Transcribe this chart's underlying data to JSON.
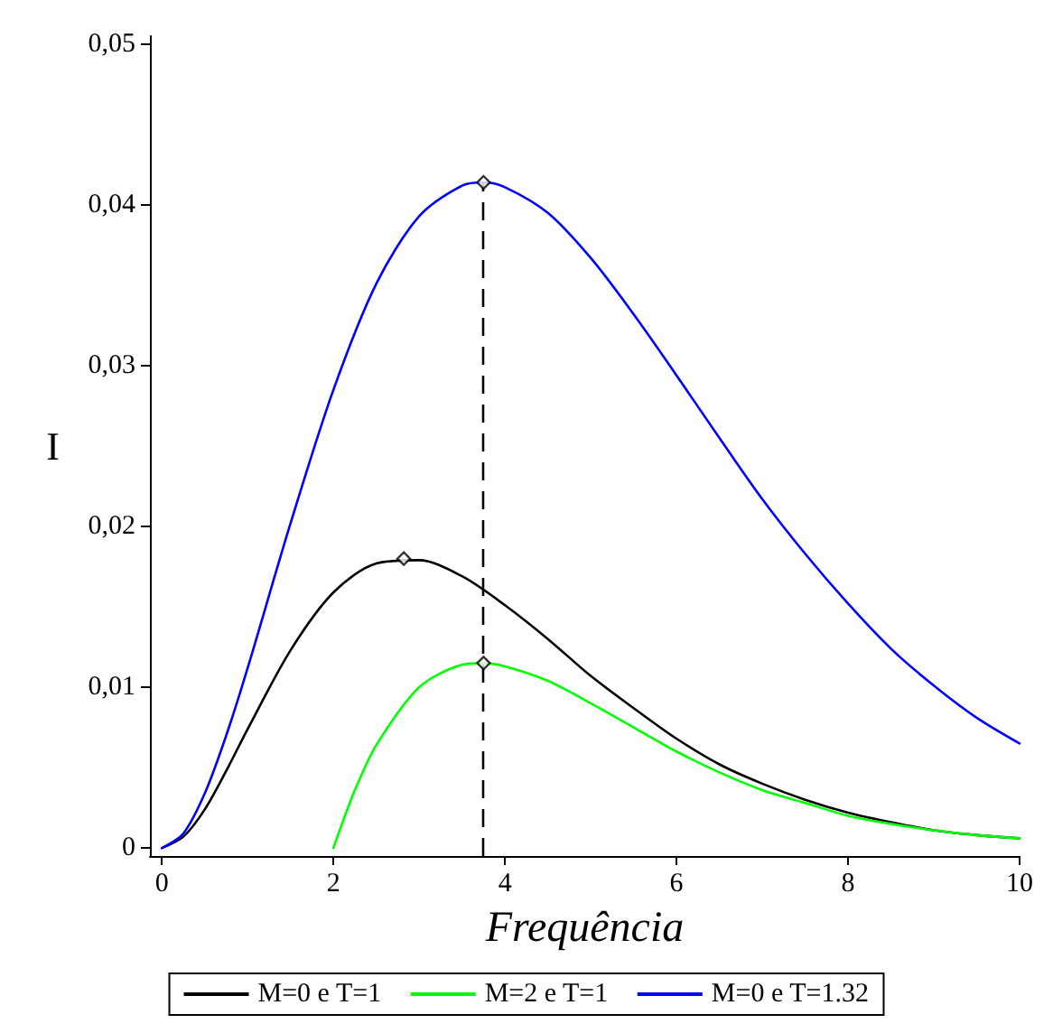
{
  "chart_data": {
    "type": "line",
    "xlabel": "Frequência",
    "ylabel": "I",
    "xlim": [
      -0.14,
      10
    ],
    "xticks": [
      0,
      2,
      4,
      6,
      8,
      10
    ],
    "ylim": [
      -0.0005,
      0.0505
    ],
    "yticks": [
      0,
      {
        "value": 0.01,
        "label": "0,01"
      },
      {
        "value": 0.02,
        "label": "0,02"
      },
      {
        "value": 0.03,
        "label": "0,03"
      },
      {
        "value": 0.04,
        "label": "0,04"
      },
      {
        "value": 0.05,
        "label": "0,05"
      }
    ],
    "grid": false,
    "legend": "bottom",
    "marker": "none",
    "line_style": "solid",
    "ref_lines": [
      {
        "axis": "x",
        "value": 3.75,
        "color": "#000000",
        "line_style": "dashed"
      }
    ],
    "series": [
      {
        "name": "M=0 e T=1",
        "color": "#000000",
        "x": [
          0,
          0.25,
          0.5,
          0.75,
          1,
          1.5,
          2,
          2.5,
          3,
          3.5,
          4,
          4.5,
          5,
          5.5,
          6,
          6.5,
          7,
          7.5,
          8,
          8.5,
          9,
          9.5,
          10
        ],
        "values": [
          0,
          0.0007,
          0.0024,
          0.0048,
          0.0074,
          0.0123,
          0.0159,
          0.0177,
          0.0179,
          0.0169,
          0.0151,
          0.013,
          0.0107,
          0.0087,
          0.0068,
          0.0052,
          0.004,
          0.003,
          0.0022,
          0.0016,
          0.0011,
          0.0008,
          0.0006
        ]
      },
      {
        "name": "M=2 e T=1",
        "color": "#00ff00",
        "x": [
          2,
          2.1,
          2.25,
          2.5,
          3,
          3.5,
          3.75,
          4,
          4.5,
          5,
          5.5,
          6,
          6.5,
          7,
          7.5,
          8,
          8.5,
          9,
          9.5,
          10
        ],
        "values": [
          0,
          0.0015,
          0.0036,
          0.0064,
          0.01,
          0.0114,
          0.0115,
          0.0113,
          0.0104,
          0.009,
          0.0075,
          0.006,
          0.0047,
          0.0036,
          0.0028,
          0.002,
          0.0015,
          0.0011,
          0.0008,
          0.0006
        ]
      },
      {
        "name": "M=0 e T=1.32",
        "color": "#0000ff",
        "x": [
          0,
          0.25,
          0.5,
          0.75,
          1,
          1.5,
          2,
          2.5,
          3,
          3.5,
          3.75,
          4,
          4.5,
          5,
          5.5,
          6,
          6.5,
          7,
          7.5,
          8,
          8.5,
          9,
          9.5,
          10
        ],
        "values": [
          0,
          0.0009,
          0.0034,
          0.007,
          0.0112,
          0.0202,
          0.0285,
          0.0351,
          0.0393,
          0.0412,
          0.0414,
          0.0411,
          0.0395,
          0.0367,
          0.0332,
          0.0294,
          0.0255,
          0.0217,
          0.0183,
          0.0152,
          0.0124,
          0.0101,
          0.0081,
          0.0065
        ]
      },
      {
        "type": "scatter",
        "color": "#000000",
        "marker": "diamond",
        "x": [
          2.82,
          3.75,
          3.75
        ],
        "values": [
          0.018,
          0.0115,
          0.0414
        ]
      }
    ]
  }
}
